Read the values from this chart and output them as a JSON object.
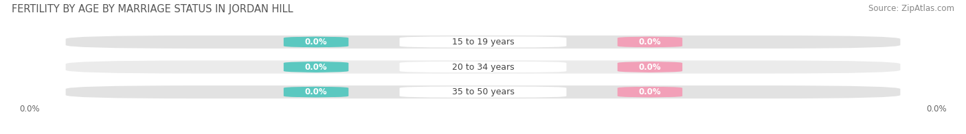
{
  "title": "FERTILITY BY AGE BY MARRIAGE STATUS IN JORDAN HILL",
  "source": "Source: ZipAtlas.com",
  "age_groups": [
    "15 to 19 years",
    "20 to 34 years",
    "35 to 50 years"
  ],
  "married_values": [
    0.0,
    0.0,
    0.0
  ],
  "unmarried_values": [
    0.0,
    0.0,
    0.0
  ],
  "married_color": "#5BC8C0",
  "unmarried_color": "#F2A0B8",
  "bar_bg_color": "#E2E2E2",
  "bar_bg_color2": "#EBEBEB",
  "title_fontsize": 10.5,
  "source_fontsize": 8.5,
  "label_fontsize": 9,
  "value_fontsize": 8.5,
  "legend_fontsize": 9,
  "tick_fontsize": 8.5,
  "figure_bg_color": "#FFFFFF",
  "axes_bg_color": "#FFFFFF",
  "left_tick_label": "0.0%",
  "right_tick_label": "0.0%"
}
